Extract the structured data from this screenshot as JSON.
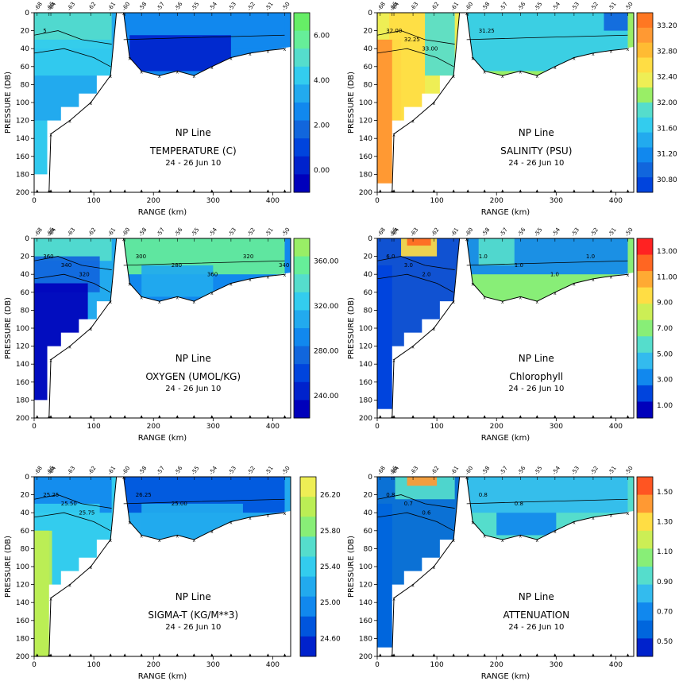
{
  "figure": {
    "xlabel": "RANGE (km)",
    "ylabel": "PRESSURE (DB)",
    "station_labels": [
      "-68",
      "-66",
      "-64",
      "-63",
      "-62",
      "-61",
      "-60",
      "-58",
      "-57",
      "-56",
      "-55",
      "-54",
      "-53",
      "-52",
      "-51",
      "-50"
    ],
    "station_range_km": [
      5,
      25,
      28,
      60,
      95,
      128,
      152,
      180,
      210,
      240,
      268,
      298,
      330,
      362,
      392,
      420
    ]
  },
  "chart_data": [
    {
      "type": "heatmap",
      "line": "NP Line",
      "title": "TEMPERATURE (C)",
      "subtitle": "24 - 26 Jun 10",
      "xlabel": "RANGE (km)",
      "ylabel": "PRESSURE (DB)",
      "xlim": [
        0,
        430
      ],
      "ylim": [
        200,
        0
      ],
      "xticks": [
        0,
        100,
        200,
        300,
        400
      ],
      "yticks": [
        0,
        20,
        40,
        60,
        80,
        100,
        120,
        140,
        160,
        180,
        200
      ],
      "colorbar": {
        "labels": [
          "6.00",
          "4.00",
          "2.00",
          "0.00"
        ],
        "colors": [
          "#66ee66",
          "#66ee99",
          "#55ddcc",
          "#33ccee",
          "#22aaee",
          "#1188ee",
          "#1166dd",
          "#0044dd",
          "#0022cc",
          "#0000bb"
        ]
      },
      "contour_labels": [
        "5"
      ],
      "fields": [
        {
          "xr": [
            0,
            130
          ],
          "yr": [
            0,
            40
          ],
          "level": 2
        },
        {
          "xr": [
            0,
            130
          ],
          "yr": [
            30,
            70
          ],
          "level": 3
        },
        {
          "xr": [
            150,
            420
          ],
          "yr": [
            0,
            40
          ],
          "level": 5
        },
        {
          "xr": [
            160,
            330
          ],
          "yr": [
            25,
            65
          ],
          "level": 8
        },
        {
          "xr": [
            0,
            30
          ],
          "yr": [
            120,
            200
          ],
          "level": 3
        }
      ]
    },
    {
      "type": "heatmap",
      "line": "NP Line",
      "title": "SALINITY (PSU)",
      "subtitle": "24 - 26 Jun 10",
      "xlabel": "RANGE (km)",
      "ylabel": "PRESSURE (DB)",
      "xlim": [
        0,
        430
      ],
      "ylim": [
        200,
        0
      ],
      "xticks": [
        0,
        100,
        200,
        300,
        400
      ],
      "yticks": [
        0,
        20,
        40,
        60,
        80,
        100,
        120,
        140,
        160,
        180,
        200
      ],
      "colorbar": {
        "labels": [
          "33.20",
          "32.80",
          "32.40",
          "32.00",
          "31.60",
          "31.20",
          "30.80"
        ],
        "colors": [
          "#ff7722",
          "#ff9933",
          "#ffbb33",
          "#ffdd44",
          "#eeee55",
          "#99ee66",
          "#55ddcc",
          "#33ccee",
          "#22aaee",
          "#1188ee",
          "#1166dd",
          "#0044dd"
        ]
      },
      "contour_labels": [
        "32.00",
        "32.25",
        "33.00",
        "31.25"
      ],
      "fields": [
        {
          "xr": [
            0,
            40
          ],
          "yr": [
            30,
            200
          ],
          "level": 1
        },
        {
          "xr": [
            20,
            80
          ],
          "yr": [
            0,
            120
          ],
          "level": 3
        },
        {
          "xr": [
            80,
            130
          ],
          "yr": [
            0,
            70
          ],
          "level": 6
        },
        {
          "xr": [
            150,
            420
          ],
          "yr": [
            0,
            65
          ],
          "level": 7
        },
        {
          "xr": [
            380,
            420
          ],
          "yr": [
            0,
            20
          ],
          "level": 10
        }
      ]
    },
    {
      "type": "heatmap",
      "line": "NP Line",
      "title": "OXYGEN (UMOL/KG)",
      "subtitle": "24 - 26 Jun 10",
      "xlabel": "RANGE (km)",
      "ylabel": "PRESSURE (DB)",
      "xlim": [
        0,
        430
      ],
      "ylim": [
        200,
        0
      ],
      "xticks": [
        0,
        100,
        200,
        300,
        400
      ],
      "yticks": [
        0,
        20,
        40,
        60,
        80,
        100,
        120,
        140,
        160,
        180,
        200
      ],
      "colorbar": {
        "labels": [
          "360.00",
          "320.00",
          "280.00",
          "240.00"
        ],
        "colors": [
          "#99ee66",
          "#66ee99",
          "#55ddcc",
          "#33ccee",
          "#22aaee",
          "#1188ee",
          "#1166dd",
          "#0044dd",
          "#0022cc",
          "#0000bb"
        ]
      },
      "contour_labels": [
        "360",
        "340",
        "320",
        "300",
        "280",
        "360",
        "320",
        "340"
      ],
      "fields": [
        {
          "xr": [
            0,
            130
          ],
          "yr": [
            0,
            25
          ],
          "level": 2
        },
        {
          "xr": [
            0,
            110
          ],
          "yr": [
            20,
            60
          ],
          "level": 6
        },
        {
          "xr": [
            0,
            90
          ],
          "yr": [
            50,
            200
          ],
          "level": 9
        },
        {
          "xr": [
            150,
            420
          ],
          "yr": [
            0,
            40
          ],
          "level": 1
        },
        {
          "xr": [
            180,
            300
          ],
          "yr": [
            30,
            65
          ],
          "level": 4
        }
      ]
    },
    {
      "type": "heatmap",
      "line": "NP Line",
      "title": "Chlorophyll",
      "subtitle": "24 - 26 Jun 10",
      "xlabel": "RANGE (km)",
      "ylabel": "PRESSURE (DB)",
      "xlim": [
        0,
        430
      ],
      "ylim": [
        200,
        0
      ],
      "xticks": [
        0,
        100,
        200,
        300,
        400
      ],
      "yticks": [
        0,
        20,
        40,
        60,
        80,
        100,
        120,
        140,
        160,
        180,
        200
      ],
      "colorbar": {
        "labels": [
          "13.00",
          "11.00",
          "9.00",
          "7.00",
          "5.00",
          "3.00",
          "1.00"
        ],
        "colors": [
          "#ff2222",
          "#ff6622",
          "#ffaa33",
          "#ffdd44",
          "#ccee55",
          "#88ee77",
          "#55ddcc",
          "#33bbee",
          "#1188ee",
          "#0044dd",
          "#0000bb"
        ]
      },
      "contour_labels": [
        "6.0",
        "3.0",
        "2.0",
        "1.0",
        "1.0",
        "1.0",
        "1.0"
      ],
      "fields": [
        {
          "xr": [
            0,
            140
          ],
          "yr": [
            0,
            200
          ],
          "level": 9
        },
        {
          "xr": [
            40,
            100
          ],
          "yr": [
            0,
            20
          ],
          "level": 3
        },
        {
          "xr": [
            50,
            90
          ],
          "yr": [
            0,
            8
          ],
          "level": 1
        },
        {
          "xr": [
            150,
            420
          ],
          "yr": [
            0,
            40
          ],
          "level": 8
        },
        {
          "xr": [
            170,
            230
          ],
          "yr": [
            0,
            30
          ],
          "level": 6
        }
      ]
    },
    {
      "type": "heatmap",
      "line": "NP Line",
      "title": "SIGMA-T (KG/M**3)",
      "subtitle": "24 - 26 Jun 10",
      "xlabel": "RANGE (km)",
      "ylabel": "PRESSURE (DB)",
      "xlim": [
        0,
        430
      ],
      "ylim": [
        200,
        0
      ],
      "xticks": [
        0,
        100,
        200,
        300,
        400
      ],
      "yticks": [
        0,
        20,
        40,
        60,
        80,
        100,
        120,
        140,
        160,
        180,
        200
      ],
      "colorbar": {
        "labels": [
          "26.20",
          "25.80",
          "25.40",
          "25.00",
          "24.60"
        ],
        "colors": [
          "#eeee55",
          "#bbee55",
          "#88ee77",
          "#55ddcc",
          "#33ccee",
          "#22aaee",
          "#1188ee",
          "#0055dd",
          "#0022cc"
        ]
      },
      "contour_labels": [
        "25.25",
        "25.50",
        "25.75",
        "26.25",
        "25.00"
      ],
      "fields": [
        {
          "xr": [
            0,
            130
          ],
          "yr": [
            0,
            40
          ],
          "level": 6
        },
        {
          "xr": [
            0,
            110
          ],
          "yr": [
            30,
            100
          ],
          "level": 4
        },
        {
          "xr": [
            0,
            30
          ],
          "yr": [
            60,
            200
          ],
          "level": 1
        },
        {
          "xr": [
            150,
            420
          ],
          "yr": [
            0,
            40
          ],
          "level": 7
        },
        {
          "xr": [
            180,
            350
          ],
          "yr": [
            30,
            65
          ],
          "level": 5
        }
      ]
    },
    {
      "type": "heatmap",
      "line": "NP Line",
      "title": "ATTENUATION",
      "subtitle": "24 - 26 Jun 10",
      "xlabel": "RANGE (km)",
      "ylabel": "PRESSURE (DB)",
      "xlim": [
        0,
        430
      ],
      "ylim": [
        200,
        0
      ],
      "xticks": [
        0,
        100,
        200,
        300,
        400
      ],
      "yticks": [
        0,
        20,
        40,
        60,
        80,
        100,
        120,
        140,
        160,
        180,
        200
      ],
      "colorbar": {
        "labels": [
          "1.50",
          "1.30",
          "1.10",
          "0.90",
          "0.70",
          "0.50"
        ],
        "colors": [
          "#ff5522",
          "#ff9933",
          "#ffdd44",
          "#ccee55",
          "#88ee77",
          "#55ddcc",
          "#33bbee",
          "#1188ee",
          "#0066dd",
          "#0022cc"
        ]
      },
      "contour_labels": [
        "0.8",
        "0.7",
        "0.6",
        "0.8",
        "0.8"
      ],
      "fields": [
        {
          "xr": [
            0,
            140
          ],
          "yr": [
            0,
            200
          ],
          "level": 8
        },
        {
          "xr": [
            30,
            130
          ],
          "yr": [
            0,
            25
          ],
          "level": 5
        },
        {
          "xr": [
            50,
            100
          ],
          "yr": [
            0,
            10
          ],
          "level": 1
        },
        {
          "xr": [
            150,
            420
          ],
          "yr": [
            0,
            40
          ],
          "level": 6
        },
        {
          "xr": [
            200,
            300
          ],
          "yr": [
            40,
            65
          ],
          "level": 7
        }
      ]
    }
  ]
}
